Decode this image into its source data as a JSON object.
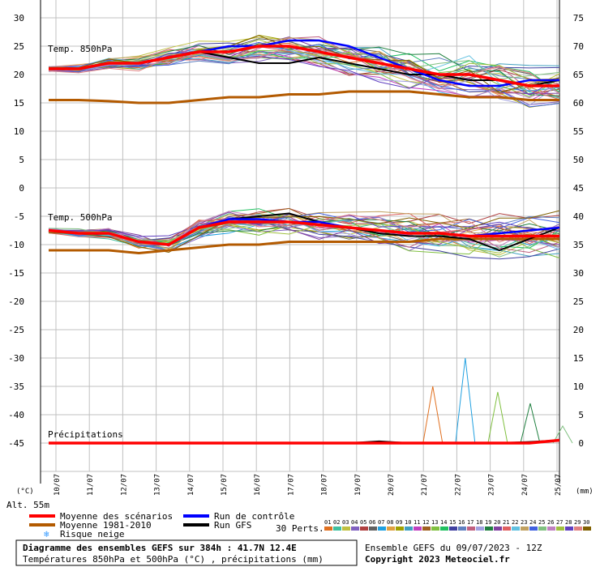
{
  "chart_data": {
    "type": "line",
    "title": "Diagramme des ensembles GEFS sur 384h : 41.7N 12.4E",
    "subtitle": "Températures 850hPa et 500hPa (°C) , précipitations (mm)",
    "run_info": "Ensemble GEFS du 09/07/2023 - 12Z",
    "copyright": "Copyright 2023 Meteociel.fr",
    "altitude": "Alt. 55m",
    "left_unit": "(°C)",
    "right_unit": "(mm)",
    "left_ticks": [
      "30",
      "25",
      "20",
      "15",
      "10",
      "5",
      "0",
      "-5",
      "-10",
      "-15",
      "-20",
      "-25",
      "-30",
      "-35",
      "-40",
      "-45"
    ],
    "right_ticks": [
      "75",
      "70",
      "65",
      "60",
      "55",
      "50",
      "45",
      "40",
      "35",
      "30",
      "25",
      "20",
      "15",
      "10",
      "5",
      "0"
    ],
    "x_labels": [
      "10/07",
      "11/07",
      "12/07",
      "13/07",
      "14/07",
      "15/07",
      "16/07",
      "17/07",
      "18/07",
      "19/07",
      "20/07",
      "21/07",
      "22/07",
      "23/07",
      "24/07",
      "25/07"
    ],
    "panel_labels": {
      "t850": "Temp. 850hPa",
      "t500": "Temp. 500hPa",
      "precip": "Précipitations"
    },
    "legend": {
      "mean": "Moyenne des scénarios",
      "climo": "Moyenne 1981-2010",
      "snow": "Risque neige",
      "control": "Run de contrôle",
      "gfs": "Run GFS",
      "perts": "30 Perts."
    },
    "colors": {
      "mean": "#ff0000",
      "climo": "#b35a00",
      "control": "#0000ff",
      "gfs": "#000000",
      "grid": "#c0c0c0",
      "snow": "#3399ff"
    },
    "pert_labels": [
      "01",
      "02",
      "03",
      "04",
      "05",
      "06",
      "07",
      "08",
      "09",
      "10",
      "11",
      "12",
      "13",
      "14",
      "15",
      "16",
      "17",
      "18",
      "19",
      "20",
      "21",
      "22",
      "23",
      "24",
      "25",
      "26",
      "27",
      "28",
      "29",
      "30"
    ],
    "pert_colors": [
      "#e07020",
      "#40c0a0",
      "#c0c040",
      "#8060c0",
      "#b04040",
      "#606060",
      "#20a0e0",
      "#e0a040",
      "#a0a000",
      "#40a0c0",
      "#c040c0",
      "#a06020",
      "#80c040",
      "#20c060",
      "#4040a0",
      "#6080c0",
      "#c06080",
      "#a0a0e0",
      "#208040",
      "#8040a0",
      "#e06060",
      "#60c0e0",
      "#c0a060",
      "#4060e0",
      "#80c080",
      "#c080c0",
      "#a0c040",
      "#6040c0",
      "#e08080",
      "#806000"
    ],
    "series_t850": {
      "mean": [
        21,
        21,
        22,
        22,
        23,
        24,
        24,
        25,
        25,
        24,
        23,
        22,
        21,
        20,
        20,
        19,
        18,
        18
      ],
      "climo": [
        15.5,
        15.5,
        15.3,
        15,
        15,
        15.5,
        16,
        16,
        16.5,
        16.5,
        17,
        17,
        17,
        16.5,
        16,
        16,
        15.5,
        15.5
      ],
      "control": [
        21,
        21,
        22,
        22,
        23,
        24,
        25,
        25,
        26,
        26,
        25,
        23,
        21,
        19,
        18,
        18,
        19,
        19
      ],
      "gfs": [
        21,
        21,
        22,
        22,
        23,
        24,
        23,
        22,
        22,
        23,
        22,
        21,
        20,
        20,
        19,
        19,
        18,
        19
      ]
    },
    "series_t500": {
      "mean": [
        -7.5,
        -8,
        -8,
        -9.5,
        -10,
        -7,
        -6,
        -6,
        -6,
        -6.5,
        -7,
        -7.5,
        -8,
        -8,
        -8.5,
        -8.5,
        -8.5,
        -8.5
      ],
      "climo": [
        -11,
        -11,
        -11,
        -11.5,
        -11,
        -10.5,
        -10,
        -10,
        -9.5,
        -9.5,
        -9.5,
        -9.5,
        -9.5,
        -9,
        -9,
        -9,
        -9,
        -9
      ],
      "control": [
        -7.5,
        -8,
        -8,
        -9.5,
        -10,
        -7,
        -5.5,
        -5.5,
        -6,
        -6,
        -7,
        -7.5,
        -8,
        -8,
        -8.5,
        -8,
        -7.5,
        -7
      ],
      "gfs": [
        -7.5,
        -8,
        -8,
        -9.5,
        -10,
        -7,
        -5.5,
        -5,
        -4.5,
        -6,
        -7,
        -8,
        -8.5,
        -8.5,
        -9,
        -11,
        -9,
        -7
      ]
    },
    "series_precip": {
      "mean": [
        0,
        0,
        0,
        0,
        0,
        0,
        0,
        0,
        0,
        0,
        0,
        0,
        0,
        0,
        0,
        0,
        0,
        0.5
      ],
      "gfs": [
        0,
        0,
        0,
        0,
        0,
        0,
        0,
        0,
        0,
        0,
        0,
        0.3,
        0,
        0,
        0,
        0,
        0.2,
        0.5
      ],
      "pert_spikes": [
        10,
        15,
        9,
        7,
        3
      ]
    }
  }
}
